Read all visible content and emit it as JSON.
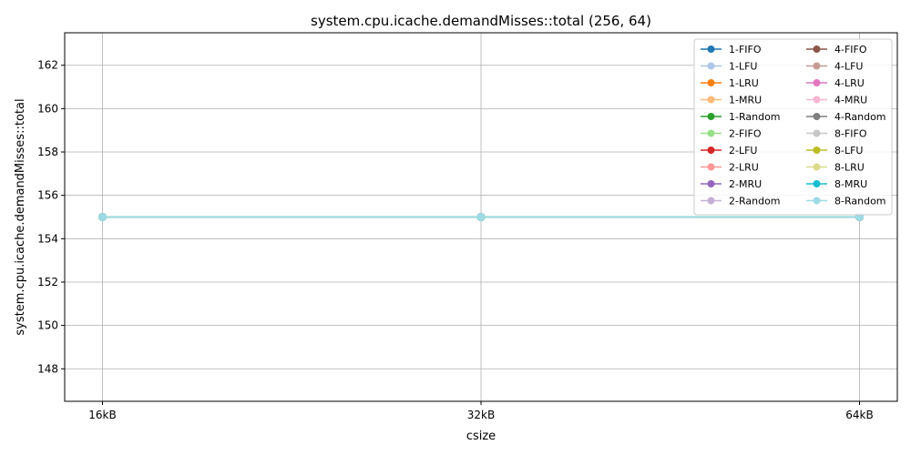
{
  "chart_data": {
    "type": "line",
    "title": "system.cpu.icache.demandMisses::total (256, 64)",
    "xlabel": "csize",
    "ylabel": "system.cpu.icache.demandMisses::total",
    "categories": [
      "16kB",
      "32kB",
      "64kB"
    ],
    "ylim": [
      146.5,
      163.5
    ],
    "yticks": [
      148,
      150,
      152,
      154,
      156,
      158,
      160,
      162
    ],
    "grid": true,
    "legend_position": "top-right",
    "legend_columns": 2,
    "series": [
      {
        "name": "1-FIFO",
        "color": "#1f77b4",
        "values": [
          155,
          155,
          155
        ]
      },
      {
        "name": "1-LFU",
        "color": "#aec7e8",
        "values": [
          155,
          155,
          155
        ]
      },
      {
        "name": "1-LRU",
        "color": "#ff7f0e",
        "values": [
          155,
          155,
          155
        ]
      },
      {
        "name": "1-MRU",
        "color": "#ffbb78",
        "values": [
          155,
          155,
          155
        ]
      },
      {
        "name": "1-Random",
        "color": "#2ca02c",
        "values": [
          155,
          155,
          155
        ]
      },
      {
        "name": "2-FIFO",
        "color": "#98df8a",
        "values": [
          155,
          155,
          155
        ]
      },
      {
        "name": "2-LFU",
        "color": "#d62728",
        "values": [
          155,
          155,
          155
        ]
      },
      {
        "name": "2-LRU",
        "color": "#ff9896",
        "values": [
          155,
          155,
          155
        ]
      },
      {
        "name": "2-MRU",
        "color": "#9467bd",
        "values": [
          155,
          155,
          155
        ]
      },
      {
        "name": "2-Random",
        "color": "#c5b0d5",
        "values": [
          155,
          155,
          155
        ]
      },
      {
        "name": "4-FIFO",
        "color": "#8c564b",
        "values": [
          155,
          155,
          155
        ]
      },
      {
        "name": "4-LFU",
        "color": "#c49c94",
        "values": [
          155,
          155,
          155
        ]
      },
      {
        "name": "4-LRU",
        "color": "#e377c2",
        "values": [
          155,
          155,
          155
        ]
      },
      {
        "name": "4-MRU",
        "color": "#f7b6d2",
        "values": [
          155,
          155,
          155
        ]
      },
      {
        "name": "4-Random",
        "color": "#7f7f7f",
        "values": [
          155,
          155,
          155
        ]
      },
      {
        "name": "8-FIFO",
        "color": "#c7c7c7",
        "values": [
          155,
          155,
          155
        ]
      },
      {
        "name": "8-LFU",
        "color": "#bcbd22",
        "values": [
          155,
          155,
          155
        ]
      },
      {
        "name": "8-LRU",
        "color": "#dbdb8d",
        "values": [
          155,
          155,
          155
        ]
      },
      {
        "name": "8-MRU",
        "color": "#17becf",
        "values": [
          155,
          155,
          155
        ]
      },
      {
        "name": "8-Random",
        "color": "#9edae5",
        "values": [
          155,
          155,
          155
        ]
      }
    ]
  }
}
